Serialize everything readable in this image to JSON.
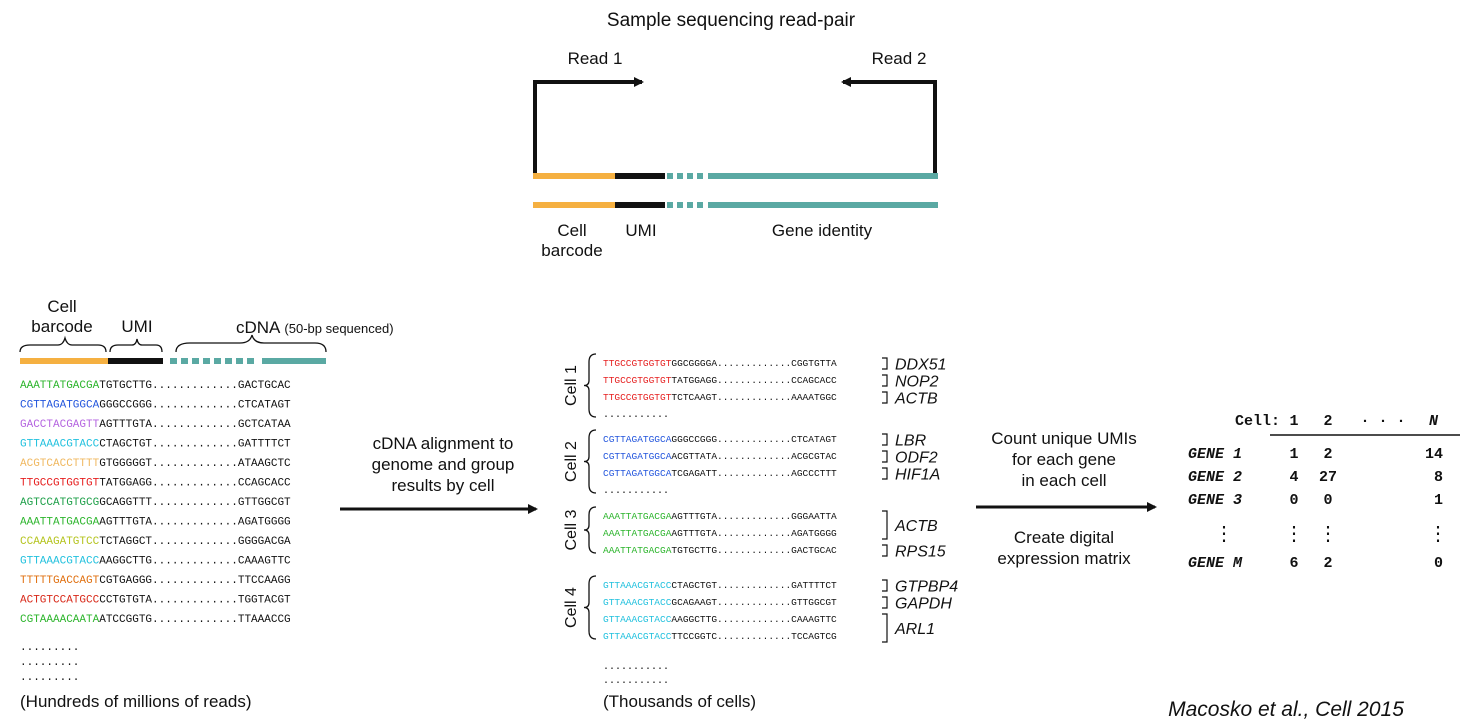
{
  "colors": {
    "orange": "#F5B041",
    "teal": "#5AA9A3",
    "black": "#111111",
    "green": "#2DB52D",
    "blue": "#2255DD",
    "purple": "#B565E0",
    "cyan": "#22C1DE",
    "tan": "#F0B860",
    "red": "#E62020",
    "darkgreen": "#1FA04A",
    "yellowgreen": "#B5C420",
    "darkorange": "#E07010",
    "crimson": "#D82818"
  },
  "top": {
    "title": "Sample sequencing read-pair",
    "read1": "Read 1",
    "read2": "Read 2",
    "label_cell": "Cell",
    "label_barcode": "barcode",
    "label_umi": "UMI",
    "label_gene": "Gene identity"
  },
  "left": {
    "label_cell": "Cell",
    "label_barcode": "barcode",
    "label_umi": "UMI",
    "label_cdna": "cDNA",
    "label_cdna_note": "(50-bp sequenced)",
    "reads": [
      {
        "barcode": "AAATTATGACGA",
        "rest": "TGTGCTTG.............GACTGCAC",
        "color": "green"
      },
      {
        "barcode": "CGTTAGATGGCA",
        "rest": "GGGCCGGG.............CTCATAGT",
        "color": "blue"
      },
      {
        "barcode": "GACCTACGAGTT",
        "rest": "AGTTTGTA.............GCTCATAA",
        "color": "purple"
      },
      {
        "barcode": "GTTAAACGTACC",
        "rest": "CTAGCTGT.............GATTTTCT",
        "color": "cyan"
      },
      {
        "barcode": "ACGTCACCTTTT",
        "rest": "GTGGGGGT.............ATAAGCTC",
        "color": "tan"
      },
      {
        "barcode": "TTGCCGTGGTGT",
        "rest": "TATGGAGG.............CCAGCACC",
        "color": "red"
      },
      {
        "barcode": "AGTCCATGTGCG",
        "rest": "GCAGGTTT.............GTTGGCGT",
        "color": "darkgreen"
      },
      {
        "barcode": "AAATTATGACGA",
        "rest": "AGTTTGTA.............AGATGGGG",
        "color": "green"
      },
      {
        "barcode": "CCAAAGATGTCC",
        "rest": "TCTAGGCT.............GGGGACGA",
        "color": "yellowgreen"
      },
      {
        "barcode": "GTTAAACGTACC",
        "rest": "AAGGCTTG.............CAAAGTTC",
        "color": "cyan"
      },
      {
        "barcode": "TTTTTGACCAGT",
        "rest": "CGTGAGGG.............TTCCAAGG",
        "color": "darkorange"
      },
      {
        "barcode": "ACTGTCCATGCC",
        "rest": "CCTGTGTA.............TGGTACGT",
        "color": "crimson"
      },
      {
        "barcode": "CGTAAAACAATA",
        "rest": "ATCCGGTG.............TTAAACCG",
        "color": "green"
      }
    ],
    "dots": [
      ".........",
      ".........",
      "........."
    ],
    "footer": "(Hundreds of millions of reads)"
  },
  "arrow1": {
    "line1": "cDNA alignment to",
    "line2": "genome and group",
    "line3": "results by cell"
  },
  "middle": {
    "cells": [
      {
        "label": "Cell 1",
        "color": "red",
        "reads": [
          {
            "barcode": "TTGCCGTGGTGT",
            "rest": "GGCGGGGA.............CGGTGTTA",
            "gene": "DDX51"
          },
          {
            "barcode": "TTGCCGTGGTGT",
            "rest": "TATGGAGG.............CCAGCACC",
            "gene": "NOP2"
          },
          {
            "barcode": "TTGCCGTGGTGT",
            "rest": "TCTCAAGT.............AAAATGGC",
            "gene": "ACTB"
          }
        ],
        "more": "..........."
      },
      {
        "label": "Cell 2",
        "color": "blue",
        "reads": [
          {
            "barcode": "CGTTAGATGGCA",
            "rest": "GGGCCGGG.............CTCATAGT",
            "gene": "LBR"
          },
          {
            "barcode": "CGTTAGATGGCA",
            "rest": "ACGTTATA.............ACGCGTAC",
            "gene": "ODF2"
          },
          {
            "barcode": "CGTTAGATGGCA",
            "rest": "TCGAGATT.............AGCCCTTT",
            "gene": "HIF1A"
          }
        ],
        "more": "..........."
      },
      {
        "label": "Cell 3",
        "color": "green",
        "reads": [
          {
            "barcode": "AAATTATGACGA",
            "rest": "AGTTTGTA.............GGGAATTA"
          },
          {
            "barcode": "AAATTATGACGA",
            "rest": "AGTTTGTA.............AGATGGGG"
          },
          {
            "barcode": "AAATTATGACGA",
            "rest": "TGTGCTTG.............GACTGCAC"
          }
        ],
        "genes": [
          "ACTB",
          "RPS15"
        ]
      },
      {
        "label": "Cell 4",
        "color": "cyan",
        "reads": [
          {
            "barcode": "GTTAAACGTACC",
            "rest": "CTAGCTGT.............GATTTTCT"
          },
          {
            "barcode": "GTTAAACGTACC",
            "rest": "GCAGAAGT.............GTTGGCGT"
          },
          {
            "barcode": "GTTAAACGTACC",
            "rest": "AAGGCTTG.............CAAAGTTC"
          },
          {
            "barcode": "GTTAAACGTACC",
            "rest": "TTCCGGTC.............TCCAGTCG"
          }
        ],
        "genes": [
          "GTPBP4",
          "GAPDH",
          "ARL1"
        ]
      }
    ],
    "dots": [
      "...........",
      "..........."
    ],
    "footer": "(Thousands of cells)"
  },
  "arrow2": {
    "line1": "Count unique UMIs",
    "line2": "for each gene",
    "line3": "in each cell",
    "line4": "Create digital",
    "line5": "expression matrix"
  },
  "matrix": {
    "header_label": "Cell:",
    "columns": [
      "1",
      "2",
      "· · ·",
      "N"
    ],
    "rows": [
      {
        "gene": "GENE 1",
        "values": [
          "1",
          "2",
          "14"
        ]
      },
      {
        "gene": "GENE 2",
        "values": [
          "4",
          "27",
          "8"
        ]
      },
      {
        "gene": "GENE 3",
        "values": [
          "0",
          "0",
          "1"
        ]
      },
      {
        "gene": "GENE M",
        "values": [
          "6",
          "2",
          "0"
        ]
      }
    ],
    "vdots": "⋮"
  },
  "citation": "Macosko et al., Cell 2015"
}
